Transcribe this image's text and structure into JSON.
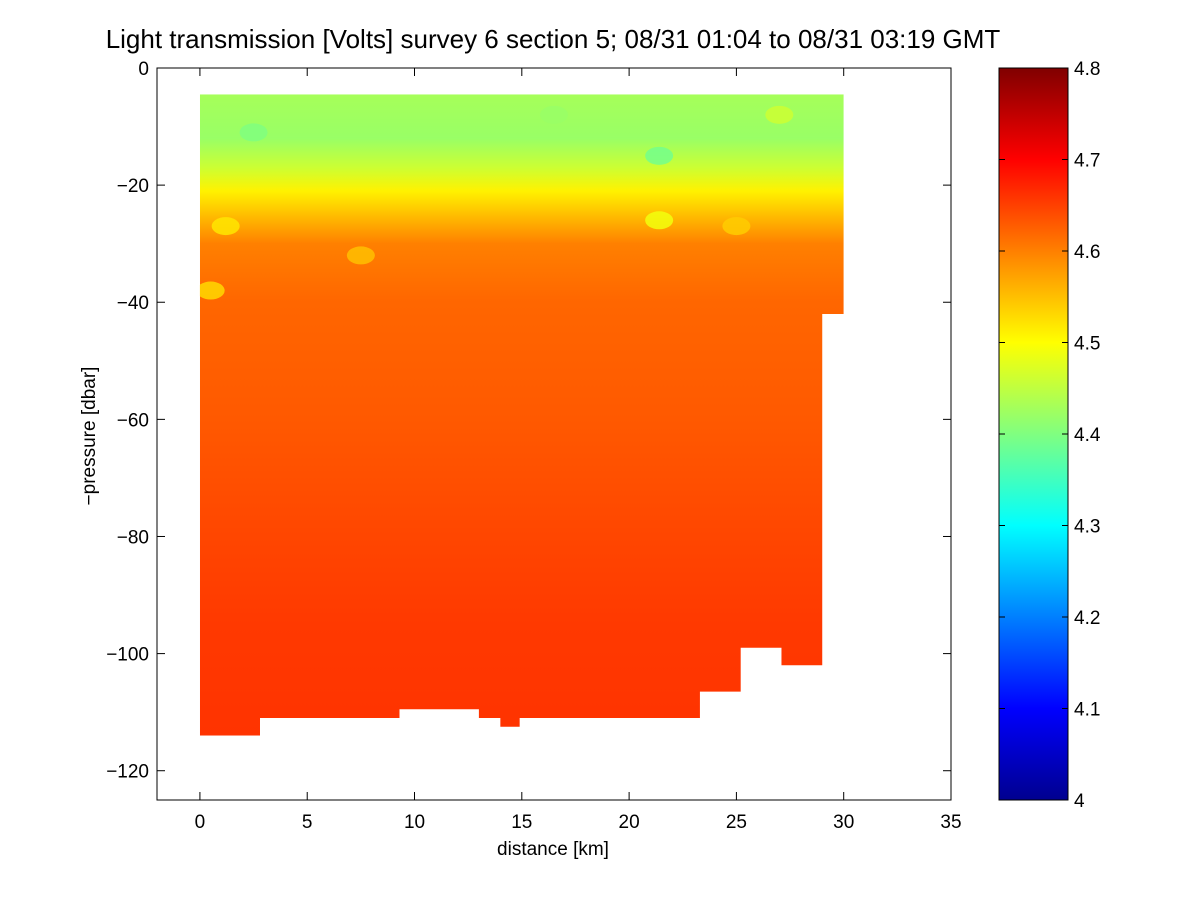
{
  "chart_data": {
    "type": "heatmap",
    "title": "Light transmission [Volts] survey 6 section 5; 08/31 01:04 to 08/31 03:19 GMT",
    "xlabel": "distance [km]",
    "ylabel": "−pressure [dbar]",
    "xlim": [
      -2,
      35
    ],
    "ylim": [
      -125,
      0
    ],
    "xticks": [
      0,
      5,
      10,
      15,
      20,
      25,
      30,
      35
    ],
    "yticks": [
      0,
      -20,
      -40,
      -60,
      -80,
      -100,
      -120
    ],
    "colormap": "jet",
    "colorbar": {
      "range": [
        4.0,
        4.8
      ],
      "ticks": [
        4,
        4.1,
        4.2,
        4.3,
        4.4,
        4.5,
        4.6,
        4.7,
        4.8
      ],
      "tick_labels": [
        "4",
        "4.1",
        "4.2",
        "4.3",
        "4.4",
        "4.5",
        "4.6",
        "4.7",
        "4.8"
      ]
    },
    "data_domain": {
      "x_range_km": [
        0,
        30
      ],
      "top_pressure": -4.5,
      "bottom_boundary": [
        {
          "x": 0,
          "y": -114
        },
        {
          "x": 2.8,
          "y": -114
        },
        {
          "x": 2.8,
          "y": -111
        },
        {
          "x": 9.3,
          "y": -111
        },
        {
          "x": 9.3,
          "y": -109.5
        },
        {
          "x": 13,
          "y": -109.5
        },
        {
          "x": 13,
          "y": -111
        },
        {
          "x": 14,
          "y": -111
        },
        {
          "x": 14,
          "y": -112.5
        },
        {
          "x": 14.9,
          "y": -112.5
        },
        {
          "x": 14.9,
          "y": -111
        },
        {
          "x": 23.3,
          "y": -111
        },
        {
          "x": 23.3,
          "y": -106.5
        },
        {
          "x": 25.2,
          "y": -106.5
        },
        {
          "x": 25.2,
          "y": -99
        },
        {
          "x": 27.1,
          "y": -99
        },
        {
          "x": 27.1,
          "y": -102
        },
        {
          "x": 29,
          "y": -102
        },
        {
          "x": 29,
          "y": -42
        },
        {
          "x": 30,
          "y": -42
        },
        {
          "x": 30,
          "y": -4.5
        }
      ]
    },
    "vertical_profile": [
      {
        "depth": -4.5,
        "value": 4.43
      },
      {
        "depth": -12,
        "value": 4.42
      },
      {
        "depth": -17,
        "value": 4.46
      },
      {
        "depth": -21,
        "value": 4.51
      },
      {
        "depth": -25,
        "value": 4.55
      },
      {
        "depth": -30,
        "value": 4.6
      },
      {
        "depth": -40,
        "value": 4.62
      },
      {
        "depth": -60,
        "value": 4.63
      },
      {
        "depth": -80,
        "value": 4.645
      },
      {
        "depth": -95,
        "value": 4.655
      },
      {
        "depth": -114,
        "value": 4.66
      }
    ],
    "features": [
      {
        "x": 21.4,
        "depth": -15,
        "value": 4.39
      },
      {
        "x": 21.4,
        "depth": -26,
        "value": 4.49
      },
      {
        "x": 2.5,
        "depth": -11,
        "value": 4.4
      },
      {
        "x": 0.5,
        "depth": -38,
        "value": 4.53
      },
      {
        "x": 1.2,
        "depth": -27,
        "value": 4.52
      },
      {
        "x": 7.5,
        "depth": -32,
        "value": 4.55
      },
      {
        "x": 25,
        "depth": -27,
        "value": 4.54
      },
      {
        "x": 16.5,
        "depth": -8,
        "value": 4.42
      },
      {
        "x": 27,
        "depth": -8,
        "value": 4.46
      }
    ]
  }
}
